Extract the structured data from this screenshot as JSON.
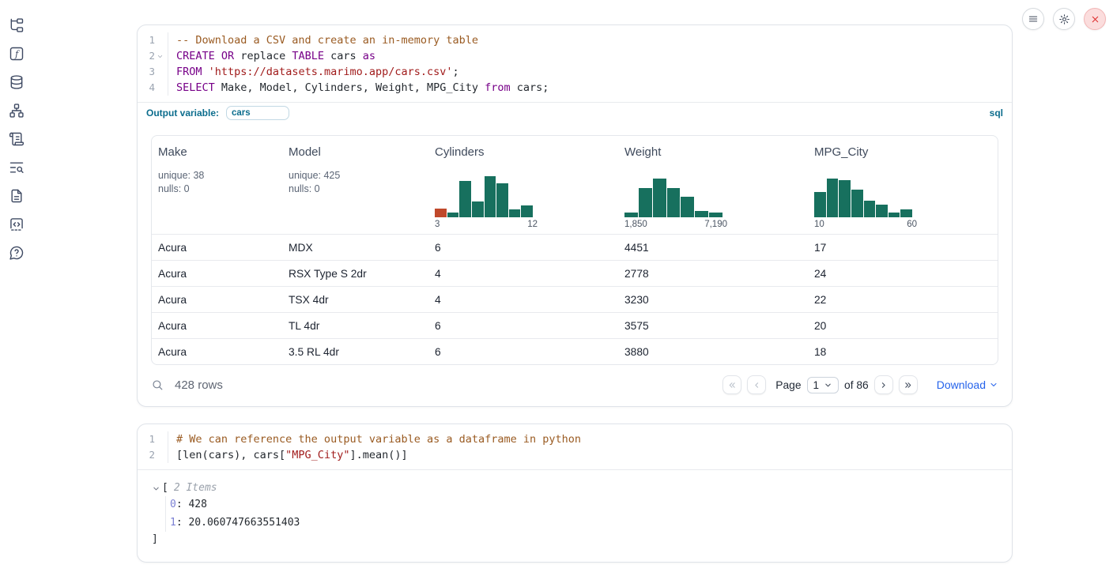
{
  "topbar": {
    "buttons": [
      {
        "name": "menu-button"
      },
      {
        "name": "settings-button"
      },
      {
        "name": "shutdown-button"
      }
    ]
  },
  "sidebar": {
    "icons": [
      "file-explorer",
      "variables",
      "datasources",
      "dependency-graph",
      "scratchpad",
      "logs",
      "documentation",
      "snippets",
      "help"
    ]
  },
  "sql_cell": {
    "code_lines": [
      {
        "num": "1",
        "fold": false,
        "tokens": [
          {
            "text": "-- Download a CSV and create an in-memory table",
            "type": "comment"
          }
        ]
      },
      {
        "num": "2",
        "fold": true,
        "tokens": [
          {
            "text": "CREATE",
            "type": "keyword"
          },
          {
            "text": " ",
            "type": "plain"
          },
          {
            "text": "OR",
            "type": "keyword"
          },
          {
            "text": " replace ",
            "type": "plain"
          },
          {
            "text": "TABLE",
            "type": "keyword"
          },
          {
            "text": " cars ",
            "type": "plain"
          },
          {
            "text": "as",
            "type": "keyword"
          }
        ]
      },
      {
        "num": "3",
        "fold": false,
        "tokens": [
          {
            "text": "FROM",
            "type": "keyword"
          },
          {
            "text": " ",
            "type": "plain"
          },
          {
            "text": "'https://datasets.marimo.app/cars.csv'",
            "type": "string"
          },
          {
            "text": ";",
            "type": "plain"
          }
        ]
      },
      {
        "num": "4",
        "fold": false,
        "tokens": [
          {
            "text": "SELECT",
            "type": "keyword"
          },
          {
            "text": " Make, Model, Cylinders, Weight, MPG_City ",
            "type": "plain"
          },
          {
            "text": "from",
            "type": "keyword"
          },
          {
            "text": " cars;",
            "type": "plain"
          }
        ]
      }
    ],
    "output_variable": {
      "label": "Output variable:",
      "value": "cars"
    },
    "language_badge": "sql"
  },
  "table": {
    "columns": [
      {
        "name": "Make",
        "stats": [
          "unique: 38",
          "nulls: 0"
        ]
      },
      {
        "name": "Model",
        "stats": [
          "unique: 425",
          "nulls: 0"
        ]
      },
      {
        "name": "Cylinders",
        "histogram": {
          "bars": [
            22,
            12,
            88,
            38,
            100,
            82,
            20,
            28
          ],
          "highlight_first": true,
          "min_label": "3",
          "max_label": "12"
        }
      },
      {
        "name": "Weight",
        "histogram": {
          "bars": [
            12,
            72,
            95,
            72,
            50,
            16,
            11
          ],
          "highlight_first": false,
          "min_label": "1,850",
          "max_label": "7,190"
        }
      },
      {
        "name": "MPG_City",
        "histogram": {
          "bars": [
            62,
            95,
            90,
            68,
            40,
            30,
            12,
            20
          ],
          "highlight_first": false,
          "min_label": "10",
          "max_label": "60"
        }
      }
    ],
    "rows": [
      [
        "Acura",
        "MDX",
        "6",
        "4451",
        "17"
      ],
      [
        "Acura",
        "RSX Type S 2dr",
        "4",
        "2778",
        "24"
      ],
      [
        "Acura",
        "TSX 4dr",
        "4",
        "3230",
        "22"
      ],
      [
        "Acura",
        "TL 4dr",
        "6",
        "3575",
        "20"
      ],
      [
        "Acura",
        "3.5 RL 4dr",
        "6",
        "3880",
        "18"
      ]
    ],
    "footer": {
      "row_count": "428 rows",
      "page_label": "Page",
      "page_value": "1",
      "page_total": "of 86",
      "download_label": "Download"
    }
  },
  "python_cell": {
    "code_lines": [
      {
        "num": "1",
        "fold": false,
        "tokens": [
          {
            "text": "# We can reference the output variable as a dataframe in python",
            "type": "comment"
          }
        ]
      },
      {
        "num": "2",
        "fold": false,
        "tokens": [
          {
            "text": "[len(cars), cars[",
            "type": "plain"
          },
          {
            "text": "\"MPG_City\"",
            "type": "string"
          },
          {
            "text": "].mean()]",
            "type": "plain"
          }
        ]
      }
    ]
  },
  "output_panel": {
    "open_bracket": "[",
    "items_label": "2 Items",
    "entries": [
      {
        "key": "0",
        "value": "428"
      },
      {
        "key": "1",
        "value": "20.060747663551403"
      }
    ],
    "close_bracket": "]"
  },
  "colors": {
    "histogram_teal": "#17705e",
    "histogram_orange": "#c0492b",
    "accent_teal": "#0c6d8d",
    "download_blue": "#2563eb"
  }
}
